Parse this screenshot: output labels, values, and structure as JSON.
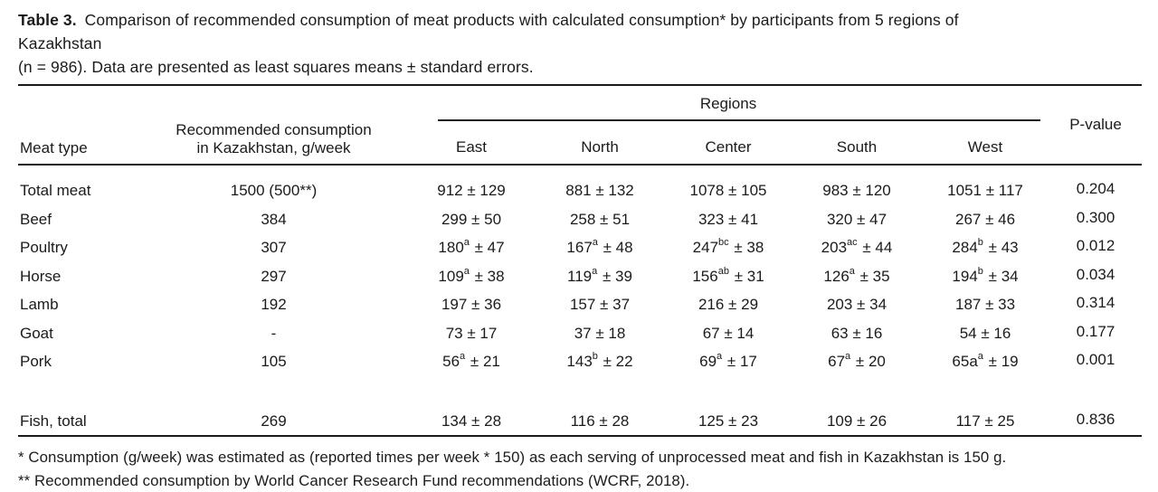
{
  "caption": {
    "table_label": "Table 3.",
    "lines": [
      "Comparison of recommended consumption of meat products with calculated consumption* by participants from 5 regions of",
      "Kazakhstan",
      "(n = 986). Data are presented as least squares means ± standard errors."
    ]
  },
  "table": {
    "columns": {
      "meat_type": "Meat type",
      "recommended_line1": "Recommended consumption",
      "recommended_line2": "in Kazakhstan, g/week",
      "regions_label": "Regions",
      "regions": [
        "East",
        "North",
        "Center",
        "South",
        "West"
      ],
      "p_value": "P-value"
    },
    "rows": [
      {
        "meat_type": "Total meat",
        "recommended": "1500 (500**)",
        "values": [
          "912 ± 129",
          "881 ± 132",
          "1078 ± 105",
          "983 ± 120",
          "1051 ± 117"
        ],
        "p_value": "0.204"
      },
      {
        "meat_type": "Beef",
        "recommended": "384",
        "values": [
          "299 ± 50",
          "258 ± 51",
          "323 ± 41",
          "320 ± 47",
          "267 ± 46"
        ],
        "p_value": "0.300"
      },
      {
        "meat_type": "Poultry",
        "recommended": "307",
        "values": [
          "180^{a} ± 47",
          "167^{a} ± 48",
          "247^{bc} ± 38",
          "203^{ac} ± 44",
          "284^{b} ± 43"
        ],
        "p_value": "0.012"
      },
      {
        "meat_type": "Horse",
        "recommended": "297",
        "values": [
          "109^{a} ± 38",
          "119^{a} ± 39",
          "156^{ab} ± 31",
          "126^{a} ± 35",
          "194^{b} ± 34"
        ],
        "p_value": "0.034"
      },
      {
        "meat_type": "Lamb",
        "recommended": "192",
        "values": [
          "197 ± 36",
          "157 ± 37",
          "216 ± 29",
          "203 ± 34",
          "187 ± 33"
        ],
        "p_value": "0.314"
      },
      {
        "meat_type": "Goat",
        "recommended": "-",
        "values": [
          "73 ± 17",
          "37 ± 18",
          "67 ± 14",
          "63 ± 16",
          "54 ± 16"
        ],
        "p_value": "0.177"
      },
      {
        "meat_type": "Pork",
        "recommended": "105",
        "values": [
          "56^{a} ± 21",
          "143^{b} ± 22",
          "69^{a} ± 17",
          "67^{a} ± 20",
          "65a^{a} ± 19"
        ],
        "p_value": "0.001"
      },
      {
        "meat_type": "Fish, total",
        "recommended": "269",
        "values": [
          "134 ± 28",
          "116 ± 28",
          "125 ± 23",
          "109 ± 26",
          "117 ± 25"
        ],
        "p_value": "0.836",
        "gap_before": true
      }
    ]
  },
  "footnotes": [
    "* Consumption (g/week) was estimated as (reported times per week * 150) as each serving of unprocessed meat and fish in Kazakhstan is 150 g.",
    "** Recommended consumption by World Cancer Research Fund recommendations (WCRF, 2018)."
  ],
  "colors": {
    "text": "#1b1b1b",
    "rule": "#1b1b1b",
    "background": "#ffffff"
  }
}
